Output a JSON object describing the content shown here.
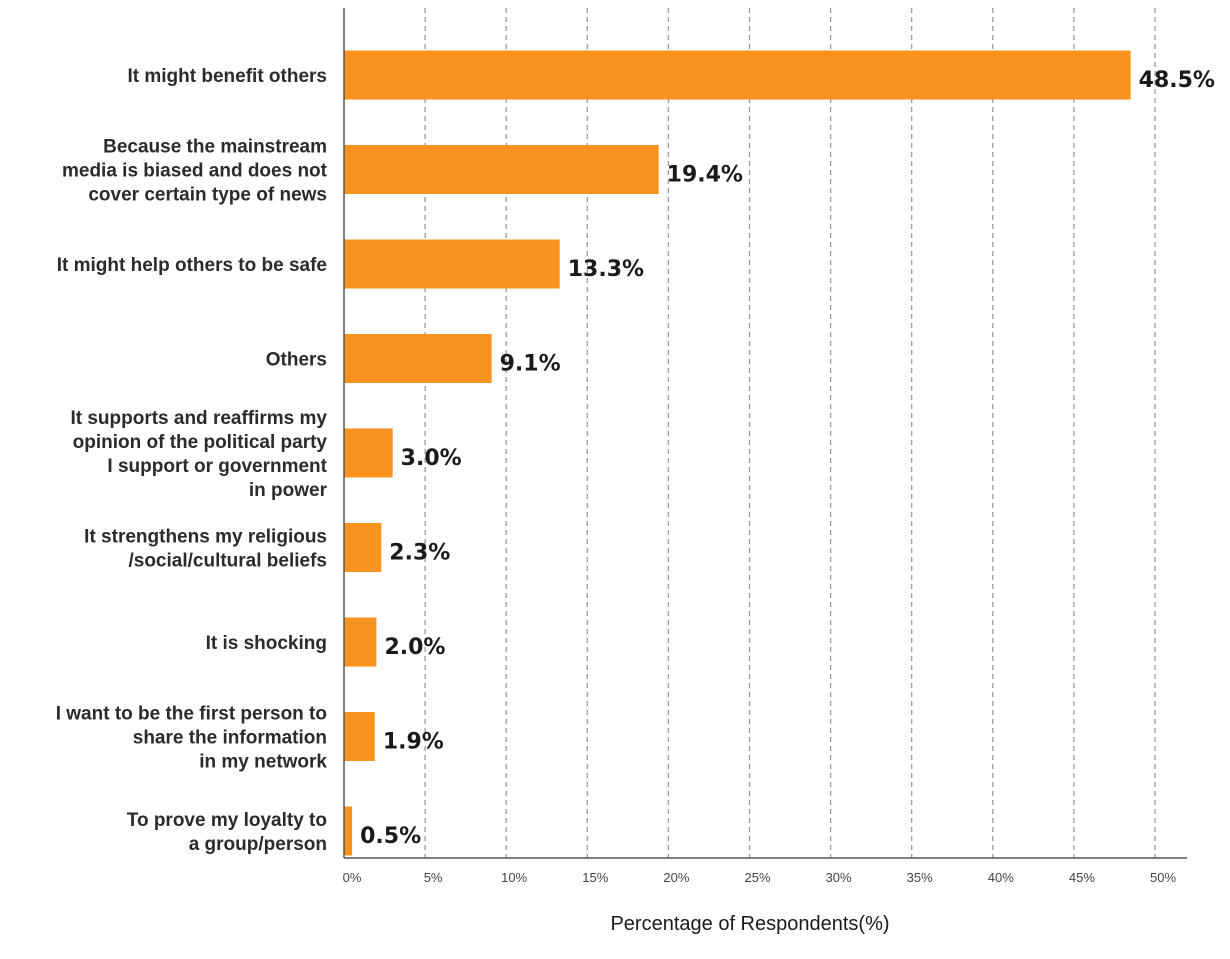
{
  "chart_data": {
    "type": "bar",
    "orientation": "horizontal",
    "categories": [
      [
        "It might benefit others"
      ],
      [
        "Because the mainstream",
        "media is biased and does not",
        "cover certain type of news"
      ],
      [
        "It might help others to be safe"
      ],
      [
        "Others"
      ],
      [
        "It supports and reaffirms my",
        "opinion of the political party",
        "I support or government",
        "in power"
      ],
      [
        "It strengthens my religious",
        "/social/cultural beliefs"
      ],
      [
        "It is shocking"
      ],
      [
        "I want to be the first person to",
        "share the information",
        "in my network"
      ],
      [
        "To prove my loyalty to",
        "a group/person"
      ]
    ],
    "values": [
      48.5,
      19.4,
      13.3,
      9.1,
      3.0,
      2.3,
      2.0,
      1.9,
      0.5
    ],
    "value_labels": [
      "48.5%",
      "19.4%",
      "13.3%",
      "9.1%",
      "3.0%",
      "2.3%",
      "2.0%",
      "1.9%",
      "0.5%"
    ],
    "xlim": [
      0,
      50
    ],
    "xticks": [
      0,
      5,
      10,
      15,
      20,
      25,
      30,
      35,
      40,
      45,
      50
    ],
    "xtick_labels": [
      "0%",
      "5%",
      "10%",
      "15%",
      "20%",
      "25%",
      "30%",
      "35%",
      "40%",
      "45%",
      "50%"
    ],
    "xlabel": "Percentage of Respondents(%)",
    "ylabel": "",
    "title": "",
    "grid": "vertical dashed",
    "legend": "none",
    "colors": {
      "bar": "#F7931E",
      "grid": "#9a9a9a",
      "axis": "#555555"
    }
  }
}
